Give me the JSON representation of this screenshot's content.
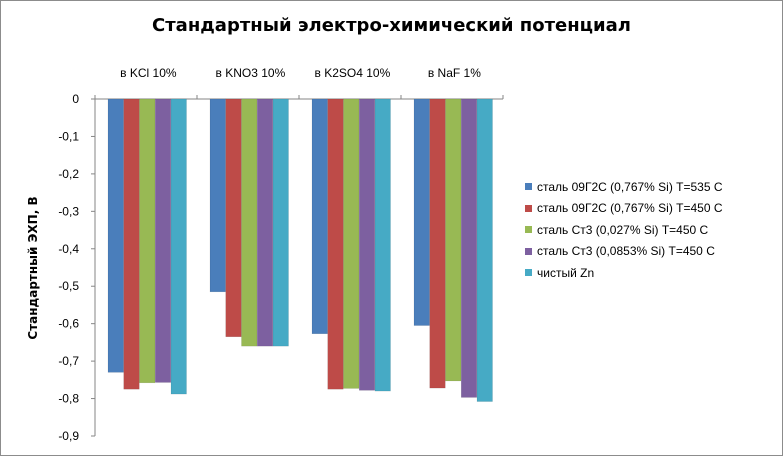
{
  "chart_data": {
    "type": "bar",
    "title": "Стандартный электро-химический потенциал",
    "ylabel": "Стандартный ЭХП, В",
    "xlabel": "",
    "categories": [
      "в KCl 10%",
      "в KNO3 10%",
      "в K2SO4 10%",
      "в NaF 1%"
    ],
    "ylim": [
      -0.9,
      0
    ],
    "yticks": [
      0,
      -0.1,
      -0.2,
      -0.3,
      -0.4,
      -0.5,
      -0.6,
      -0.7,
      -0.8,
      -0.9
    ],
    "ytick_labels": [
      "0",
      "-0,1",
      "-0,2",
      "-0,3",
      "-0,4",
      "-0,5",
      "-0,6",
      "-0,7",
      "-0,8",
      "-0,9"
    ],
    "category_axis_position": "top",
    "legend_position": "right",
    "grid": false,
    "series": [
      {
        "name": "сталь 09Г2С (0,767% Si) T=535 C",
        "color": "#4a7ebb",
        "values": [
          -0.73,
          -0.515,
          -0.627,
          -0.605
        ]
      },
      {
        "name": "сталь 09Г2С (0,767% Si) T=450 C",
        "color": "#be4b48",
        "values": [
          -0.775,
          -0.635,
          -0.775,
          -0.772
        ]
      },
      {
        "name": "сталь Ст3 (0,027% Si) T=450 C",
        "color": "#98b954",
        "values": [
          -0.758,
          -0.66,
          -0.773,
          -0.753
        ]
      },
      {
        "name": "сталь Ст3 (0,0853% Si) T=450 C",
        "color": "#7d60a0",
        "values": [
          -0.757,
          -0.66,
          -0.778,
          -0.797
        ]
      },
      {
        "name": "чистый Zn",
        "color": "#46aac5",
        "values": [
          -0.788,
          -0.66,
          -0.78,
          -0.808
        ]
      }
    ]
  }
}
